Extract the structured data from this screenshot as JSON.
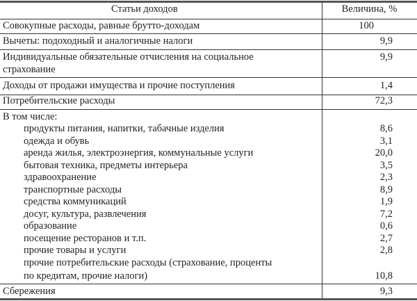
{
  "header": {
    "col1": "Статьи доходов",
    "col2": "Величина, %"
  },
  "rows": [
    {
      "label": "Совокупные расходы, равные брутто-доходам",
      "value": "100"
    },
    {
      "label": "Вычеты: подоходный и аналогичные налоги",
      "value": "9,9"
    },
    {
      "label_line1": "Индивидуальные обязательные отчисления на социальное",
      "label_line2": "страхование",
      "value": "9,9"
    },
    {
      "label": "Доходы от продажи имущества и прочие поступления",
      "value": "1,4"
    },
    {
      "label": "Потребительские расходы",
      "value": "72,3"
    }
  ],
  "group": {
    "label": "В том числе:",
    "items": [
      {
        "label": "продукты питания, напитки, табачные изделия",
        "value": "8,6"
      },
      {
        "label": "одежда и обувь",
        "value": "3,1"
      },
      {
        "label": "аренда жилья, электроэнергия, коммунальные услуги",
        "value": "20,0"
      },
      {
        "label": "бытовая техника, предметы интерьера",
        "value": "3,5"
      },
      {
        "label": "здравоохранение",
        "value": "2,3"
      },
      {
        "label": "транспортные расходы",
        "value": "8,9"
      },
      {
        "label": "средства коммуникаций",
        "value": "1,9"
      },
      {
        "label": "досуг, культура, развлечения",
        "value": "7,2"
      },
      {
        "label": "образование",
        "value": "0,6"
      },
      {
        "label": "посещение ресторанов и т.п.",
        "value": "2,7"
      },
      {
        "label": "прочие товары и услуги",
        "value": "2,8"
      },
      {
        "label_line1": "прочие потребительские расходы (страхование, проценты",
        "label_line2": "по кредитам, прочие налоги)",
        "value": "10,8"
      }
    ]
  },
  "footer_row": {
    "label": "Сбережения",
    "value": "9,3"
  }
}
